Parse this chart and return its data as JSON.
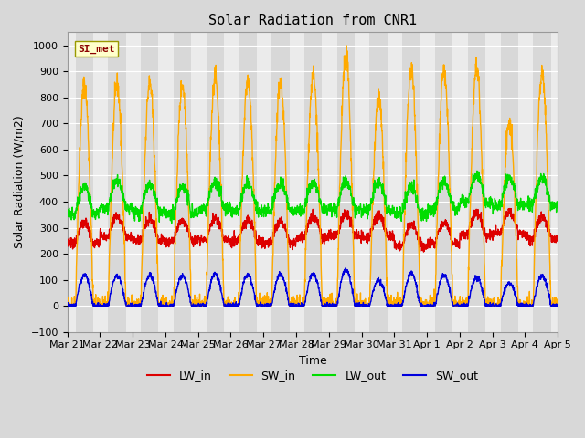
{
  "title": "Solar Radiation from CNR1",
  "xlabel": "Time",
  "ylabel": "Solar Radiation (W/m2)",
  "ylim": [
    -100,
    1050
  ],
  "yticks": [
    -100,
    0,
    100,
    200,
    300,
    400,
    500,
    600,
    700,
    800,
    900,
    1000
  ],
  "annotation_text": "SI_met",
  "colors": {
    "LW_in": "#dd0000",
    "SW_in": "#ffaa00",
    "LW_out": "#00dd00",
    "SW_out": "#0000dd"
  },
  "day_band_color": "#d8d8d8",
  "night_band_color": "#ebebeb",
  "grid_color": "#ffffff",
  "fig_facecolor": "#d8d8d8",
  "n_days": 15,
  "xtick_labels": [
    "Mar 21",
    "Mar 22",
    "Mar 23",
    "Mar 24",
    "Mar 25",
    "Mar 26",
    "Mar 27",
    "Mar 28",
    "Mar 29",
    "Mar 30",
    "Mar 31",
    "Apr 1",
    "Apr 2",
    "Apr 3",
    "Apr 4",
    "Apr 5"
  ],
  "linewidth": 1.0,
  "pts_per_day": 144
}
